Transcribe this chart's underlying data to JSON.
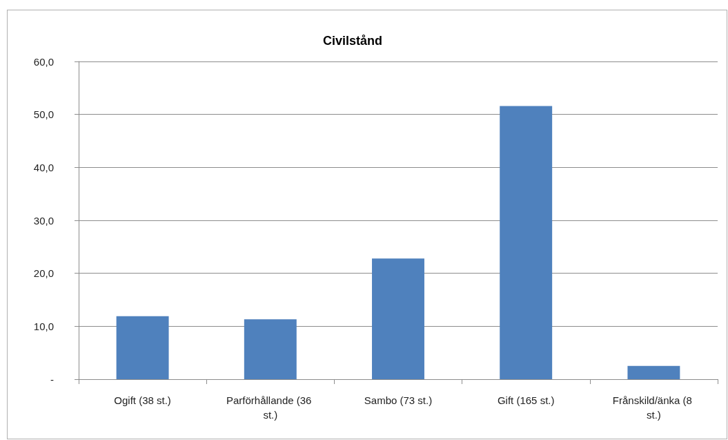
{
  "chart_data": {
    "type": "bar",
    "title": "Civilstånd",
    "categories": [
      "Ogift (38 st.)",
      "Parförhållande (36 st.)",
      "Sambo (73 st.)",
      "Gift (165 st.)",
      "Frånskild/änka (8 st.)"
    ],
    "values": [
      11.9,
      11.3,
      22.8,
      51.6,
      2.5
    ],
    "color": "#4f81bd",
    "ylim": [
      0,
      60
    ],
    "yticks": [
      {
        "value": 0,
        "label": "-"
      },
      {
        "value": 10,
        "label": "10,0"
      },
      {
        "value": 20,
        "label": "20,0"
      },
      {
        "value": 30,
        "label": "30,0"
      },
      {
        "value": 40,
        "label": "40,0"
      },
      {
        "value": 50,
        "label": "50,0"
      },
      {
        "value": 60,
        "label": "60,0"
      }
    ],
    "grid": "y"
  }
}
